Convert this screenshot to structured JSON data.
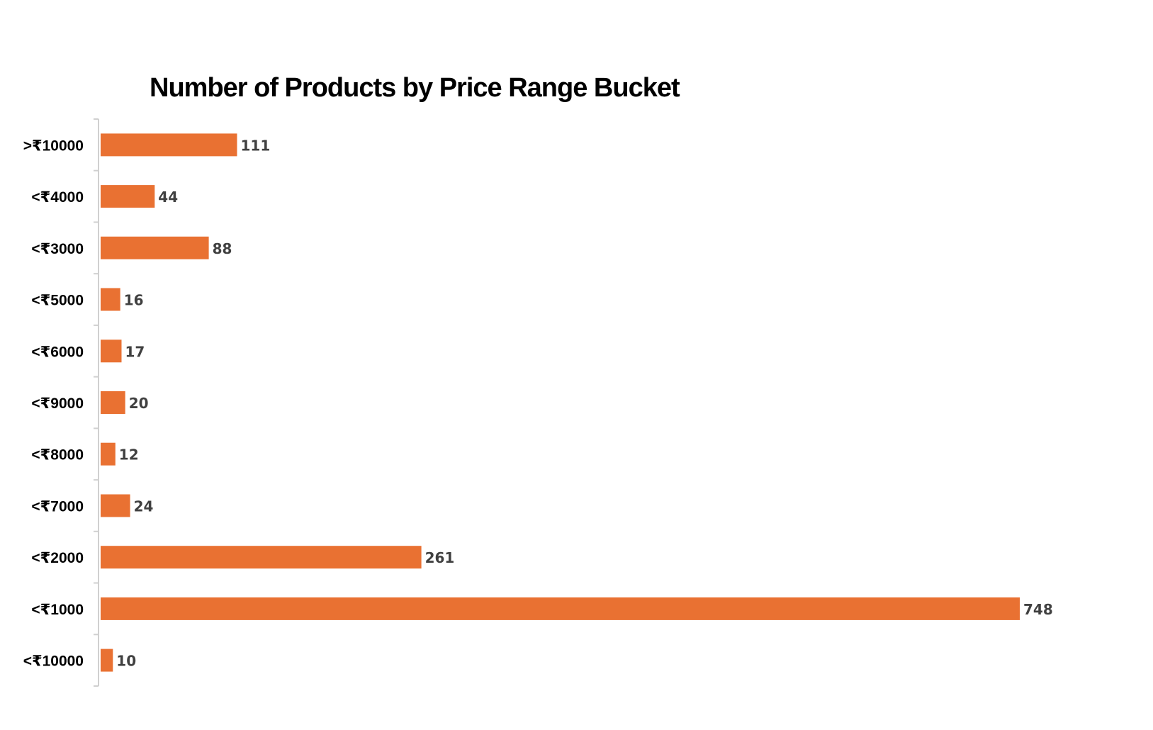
{
  "chart_data": {
    "type": "bar",
    "orientation": "horizontal",
    "title": "Number of Products by Price Range Bucket",
    "xlabel": "",
    "ylabel": "",
    "categories": [
      ">₹10000",
      "<₹4000",
      "<₹3000",
      "<₹5000",
      "<₹6000",
      "<₹9000",
      "<₹8000",
      "<₹7000",
      "<₹2000",
      "<₹1000",
      "<₹10000"
    ],
    "values": [
      111,
      44,
      88,
      16,
      17,
      20,
      12,
      24,
      261,
      748,
      10
    ],
    "xlim": [
      0,
      748
    ],
    "grid": false,
    "legend": "none",
    "bar_color": "#E97132"
  }
}
